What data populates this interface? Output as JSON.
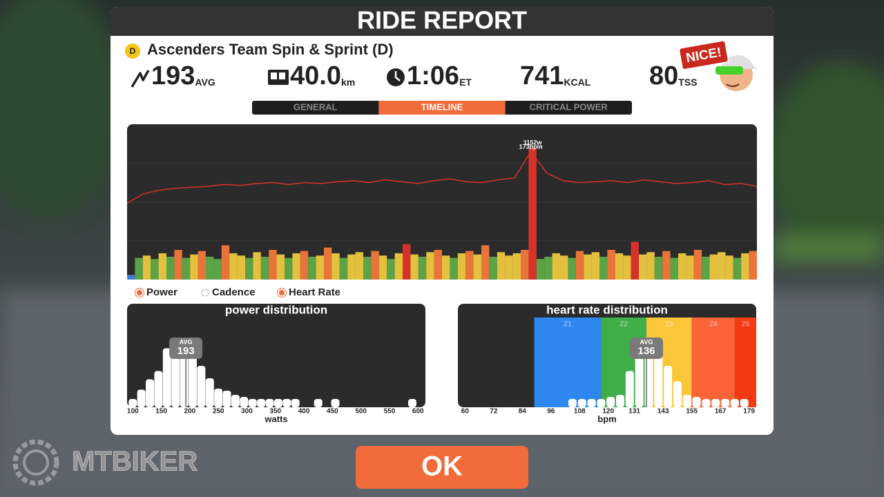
{
  "header": {
    "title": "RIDE REPORT"
  },
  "event": {
    "category": "D",
    "name": "Ascenders Team Spin & Sprint (D)"
  },
  "stats": [
    {
      "value": 193,
      "unit": "AVG"
    },
    {
      "value": "40.0",
      "unit": "km"
    },
    {
      "value": "1:06",
      "unit": "ET"
    },
    {
      "value": 741,
      "unit": "KCAL"
    },
    {
      "value": 80,
      "unit": "TSS"
    }
  ],
  "badge": {
    "text": "NICE!"
  },
  "tabs": {
    "items": [
      "GENERAL",
      "TIMELINE",
      "CRITICAL POWER"
    ],
    "active": 1
  },
  "legend": [
    {
      "name": "Power",
      "active": true
    },
    {
      "name": "Cadence",
      "active": false
    },
    {
      "name": "Heart Rate",
      "active": true
    }
  ],
  "chart_data": [
    {
      "type": "timeline",
      "power": {
        "ylim": [
          0,
          1360
        ],
        "peak_label": "1152w",
        "zones": [
          {
            "max": 150,
            "color": "#3d7fd6"
          },
          {
            "max": 200,
            "color": "#5ba346"
          },
          {
            "max": 240,
            "color": "#e3c13f"
          },
          {
            "max": 300,
            "color": "#e9743a"
          },
          {
            "max": 1360,
            "color": "#d7322a"
          }
        ],
        "values": [
          40,
          190,
          210,
          180,
          230,
          200,
          260,
          190,
          220,
          250,
          200,
          180,
          300,
          230,
          210,
          190,
          240,
          200,
          260,
          220,
          190,
          230,
          250,
          200,
          210,
          280,
          230,
          190,
          220,
          240,
          200,
          250,
          210,
          180,
          230,
          310,
          220,
          200,
          240,
          260,
          210,
          190,
          230,
          250,
          220,
          300,
          200,
          240,
          210,
          230,
          260,
          1152,
          180,
          200,
          230,
          210,
          190,
          250,
          220,
          240,
          200,
          260,
          230,
          210,
          330,
          220,
          240,
          200,
          250,
          190,
          230,
          210,
          260,
          200,
          220,
          240,
          210,
          190,
          230,
          250
        ]
      },
      "heart_rate": {
        "ylim": [
          37,
          202
        ],
        "color": "#d9302a",
        "peak_label": "173bpm",
        "values": [
          118,
          128,
          132,
          134,
          135,
          136,
          138,
          137,
          139,
          140,
          138,
          140,
          139,
          141,
          142,
          140,
          143,
          141,
          139,
          142,
          144,
          141,
          140,
          143,
          145,
          173,
          150,
          142,
          140,
          141,
          142,
          140,
          143,
          141,
          139,
          140,
          142,
          138,
          139,
          136
        ]
      }
    },
    {
      "type": "histogram",
      "title": "power distribution",
      "x_label": "watts",
      "xlim": [
        90,
        613
      ],
      "xticks": [
        100,
        150,
        200,
        250,
        300,
        350,
        400,
        450,
        500,
        550,
        600
      ],
      "ylim": [
        0,
        100
      ],
      "x": [
        100,
        115,
        130,
        145,
        160,
        175,
        190,
        205,
        220,
        235,
        250,
        265,
        280,
        295,
        310,
        325,
        340,
        355,
        370,
        385,
        425,
        455,
        590
      ],
      "values": [
        8,
        17,
        27,
        35,
        57,
        67,
        67,
        67,
        40,
        28,
        18,
        16,
        12,
        10,
        8,
        8,
        8,
        8,
        8,
        8,
        8,
        8,
        8
      ],
      "avg": 193,
      "avg_label": "AVG"
    },
    {
      "type": "histogram",
      "title": "heart rate distribution",
      "x_label": "bpm",
      "xlim": [
        57,
        182
      ],
      "xticks": [
        60,
        72,
        84,
        96,
        108,
        120,
        131,
        143,
        155,
        167,
        179
      ],
      "ylim": [
        0,
        100
      ],
      "zones": [
        {
          "name": "Z1",
          "from": 89,
          "to": 117,
          "color": "#2f87f0"
        },
        {
          "name": "Z2",
          "from": 117,
          "to": 136,
          "color": "#3fae49"
        },
        {
          "name": "Z3",
          "from": 136,
          "to": 155,
          "color": "#fcc63a"
        },
        {
          "name": "Z4",
          "from": 155,
          "to": 173,
          "color": "#fb6338"
        },
        {
          "name": "Z5",
          "from": 173,
          "to": 182,
          "color": "#f33a12"
        }
      ],
      "x": [
        105,
        109,
        113,
        117,
        121,
        125,
        129,
        133,
        137,
        141,
        145,
        149,
        153,
        157,
        161,
        165,
        169,
        173,
        177
      ],
      "values": [
        8,
        8,
        8,
        8,
        10,
        12,
        35,
        50,
        60,
        55,
        40,
        25,
        12,
        10,
        8,
        8,
        8,
        8,
        8
      ],
      "avg": 136,
      "avg_label": "AVG"
    }
  ],
  "button": {
    "label": "OK"
  },
  "watermark": {
    "text": "MTBIKER"
  }
}
